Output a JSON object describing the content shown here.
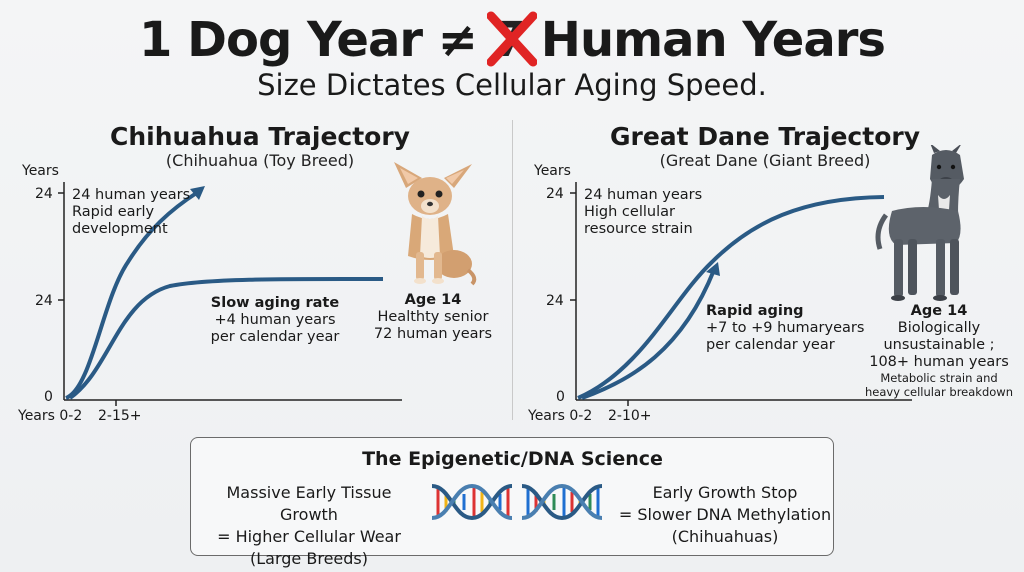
{
  "header": {
    "title_prefix": "1 Dog Year ≠",
    "title_struck": "7",
    "title_suffix": "Human Years",
    "subtitle": "Size Dictates Cellular Aging Speed."
  },
  "left_panel": {
    "title": "Chihuahua Trajectory",
    "subtitle": "(Chihuahua (Toy Breed)",
    "y_axis_label": "Years",
    "y_ticks": [
      "24",
      "24",
      "0"
    ],
    "x_ticks": [
      "Years 0-2",
      "2-15+"
    ],
    "upper_note": [
      "24 human years",
      "Rapid early",
      "development"
    ],
    "rate_title": "Slow aging rate",
    "rate_line1": "+4 human years",
    "rate_line2": "per calendar year",
    "age_title": "Age 14",
    "age_line1": "Healthty senior",
    "age_line2": "72 human years",
    "image_icon": "chihuahua-photo"
  },
  "right_panel": {
    "title": "Great Dane Trajectory",
    "subtitle": "(Great Dane (Giant Breed)",
    "y_axis_label": "Years",
    "y_ticks": [
      "24",
      "24",
      "0"
    ],
    "x_ticks": [
      "Years 0-2",
      "2-10+"
    ],
    "upper_note": [
      "24 human years",
      "High cellular",
      "resource strain"
    ],
    "rate_title": "Rapid aging",
    "rate_line1": "+7 to +9 humaryears",
    "rate_line2": "per calendar year",
    "age_title": "Age 14",
    "age_line1": "Biologically",
    "age_line2": "unsustainable ;",
    "age_line3": "108+ human years",
    "age_line4": "Metabolic strain and",
    "age_line5": "heavy cellular breakdown",
    "image_icon": "great-dane-photo"
  },
  "science": {
    "title": "The Epigenetic/DNA Science",
    "left_line1": "Massive Early Tissue Growth",
    "left_line2": "= Higher Cellular Wear",
    "left_line3": "(Large Breeds)",
    "right_line1": "Early Growth Stop",
    "right_line2": "= Slower DNA Methylation",
    "right_line3": "(Chihuahuas)",
    "icon": "dna-helix-icon"
  },
  "colors": {
    "curve": "#2a5a85",
    "strike": "#e02424",
    "axis": "#222222"
  }
}
